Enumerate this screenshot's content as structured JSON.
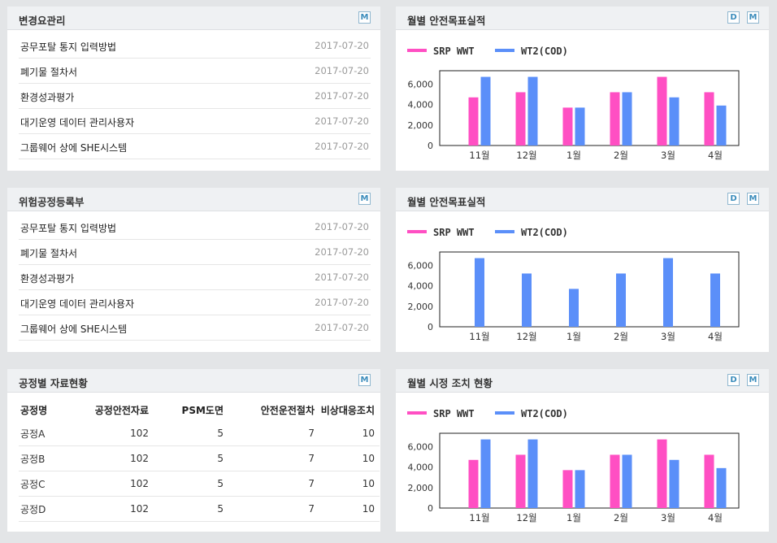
{
  "left_panels": [
    {
      "title": "변경요관리",
      "buttons": [
        "M"
      ],
      "items": [
        {
          "text": "공무포탈 통지 입력방법",
          "date": "2017-07-20"
        },
        {
          "text": "폐기물 절차서",
          "date": "2017-07-20"
        },
        {
          "text": "환경성과평가",
          "date": "2017-07-20"
        },
        {
          "text": "대기운영 데이터 관리사용자",
          "date": "2017-07-20"
        },
        {
          "text": "그룹웨어 상에 SHE시스템",
          "date": "2017-07-20"
        }
      ]
    },
    {
      "title": "위험공정등록부",
      "buttons": [
        "M"
      ],
      "items": [
        {
          "text": "공무포탈 통지 입력방법",
          "date": "2017-07-20"
        },
        {
          "text": "폐기물 절차서",
          "date": "2017-07-20"
        },
        {
          "text": "환경성과평가",
          "date": "2017-07-20"
        },
        {
          "text": "대기운영 데이터 관리사용자",
          "date": "2017-07-20"
        },
        {
          "text": "그룹웨어 상에 SHE시스템",
          "date": "2017-07-20"
        }
      ]
    }
  ],
  "table_panel": {
    "title": "공정별 자료현황",
    "buttons": [
      "M"
    ],
    "columns": [
      "공정명",
      "공정안전자료",
      "PSM도면",
      "안전운전절차",
      "비상대응조치"
    ],
    "rows": [
      [
        "공정A",
        "102",
        "5",
        "7",
        "10"
      ],
      [
        "공정B",
        "102",
        "5",
        "7",
        "10"
      ],
      [
        "공정C",
        "102",
        "5",
        "7",
        "10"
      ],
      [
        "공정D",
        "102",
        "5",
        "7",
        "10"
      ]
    ]
  },
  "chart_panels": [
    {
      "title": "월별 안전목표실적",
      "buttons": [
        "D",
        "M"
      ]
    },
    {
      "title": "월별 안전목표실적",
      "buttons": [
        "D",
        "M"
      ]
    },
    {
      "title": "월별 시정 조치 현황",
      "buttons": [
        "D",
        "M"
      ]
    }
  ],
  "colors": {
    "pink": "#ff4fc3",
    "blue": "#5b8ff9"
  },
  "chart_data": [
    {
      "type": "bar",
      "title": "월별 안전목표실적",
      "categories": [
        "11월",
        "12월",
        "1월",
        "2월",
        "3월",
        "4월"
      ],
      "series": [
        {
          "name": "SRP WWT",
          "color": "#ff4fc3",
          "values": [
            4700,
            5200,
            3700,
            5200,
            6700,
            5200
          ]
        },
        {
          "name": "WT2(COD)",
          "color": "#5b8ff9",
          "values": [
            6700,
            6700,
            3700,
            5200,
            4700,
            3900
          ]
        }
      ],
      "yticks": [
        0,
        2000,
        4000,
        6000
      ],
      "ytick_labels": [
        "0",
        "2,000",
        "4,000",
        "6,000"
      ],
      "ylim": [
        0,
        7300
      ],
      "legend": "top-left"
    },
    {
      "type": "bar",
      "title": "월별 안전목표실적",
      "categories": [
        "11월",
        "12월",
        "1월",
        "2월",
        "3월",
        "4월"
      ],
      "series": [
        {
          "name": "SRP WWT",
          "color": "#ff4fc3",
          "values": [
            0,
            0,
            0,
            0,
            0,
            0
          ]
        },
        {
          "name": "WT2(COD)",
          "color": "#5b8ff9",
          "values": [
            6700,
            5200,
            3700,
            5200,
            6700,
            5200
          ]
        }
      ],
      "yticks": [
        0,
        2000,
        4000,
        6000
      ],
      "ytick_labels": [
        "0",
        "2,000",
        "4,000",
        "6,000"
      ],
      "ylim": [
        0,
        7300
      ],
      "legend": "top-left"
    },
    {
      "type": "bar",
      "title": "월별 시정 조치 현황",
      "categories": [
        "11월",
        "12월",
        "1월",
        "2월",
        "3월",
        "4월"
      ],
      "series": [
        {
          "name": "SRP WWT",
          "color": "#ff4fc3",
          "values": [
            4700,
            5200,
            3700,
            5200,
            6700,
            5200
          ]
        },
        {
          "name": "WT2(COD)",
          "color": "#5b8ff9",
          "values": [
            6700,
            6700,
            3700,
            5200,
            4700,
            3900
          ]
        }
      ],
      "yticks": [
        0,
        2000,
        4000,
        6000
      ],
      "ytick_labels": [
        "0",
        "2,000",
        "4,000",
        "6,000"
      ],
      "ylim": [
        0,
        7300
      ],
      "legend": "top-left"
    }
  ]
}
